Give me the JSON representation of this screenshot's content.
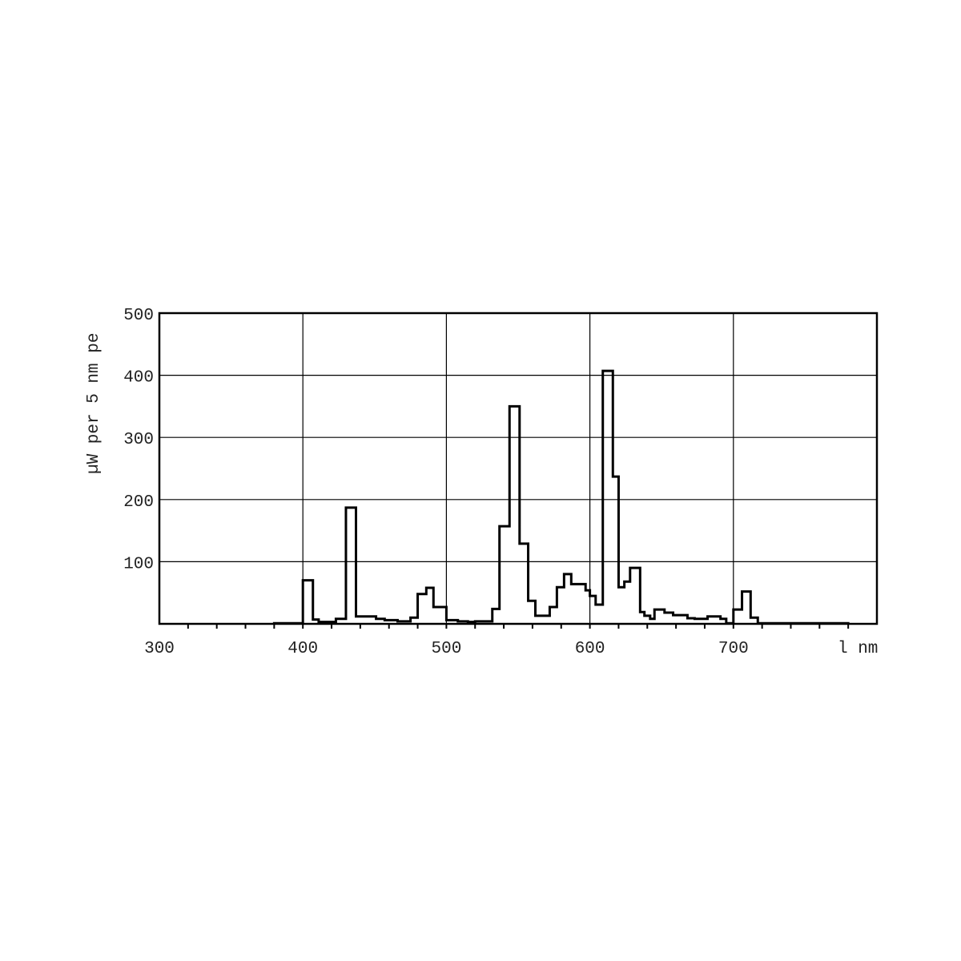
{
  "chart_data": {
    "type": "step",
    "title": "",
    "xlabel": "l nm",
    "ylabel": "µW per 5 nm pe",
    "xlim": [
      300,
      800
    ],
    "ylim": [
      0,
      500
    ],
    "x_ticks": [
      300,
      400,
      500,
      600,
      700
    ],
    "y_ticks": [
      100,
      200,
      300,
      400,
      500
    ],
    "x_minor_step": 20,
    "grid": true,
    "line_color": "#000000",
    "bin_edges": [
      380,
      400,
      407,
      411,
      423,
      430,
      437,
      451,
      457,
      466,
      475,
      480,
      486,
      491,
      500,
      508,
      515,
      520,
      532,
      537,
      544,
      551,
      557,
      562,
      572,
      577,
      582,
      587,
      597,
      600,
      604,
      609,
      616,
      620,
      624,
      628,
      635,
      638,
      642,
      645,
      652,
      658,
      668,
      673,
      682,
      691,
      695,
      700,
      706,
      712,
      717,
      780
    ],
    "values": [
      1,
      70,
      7,
      3,
      8,
      187,
      12,
      8,
      6,
      4,
      10,
      48,
      58,
      27,
      6,
      4,
      3,
      4,
      24,
      157,
      350,
      129,
      37,
      13,
      27,
      59,
      80,
      64,
      54,
      45,
      31,
      407,
      237,
      59,
      68,
      90,
      19,
      13,
      8,
      23,
      18,
      14,
      9,
      8,
      12,
      8,
      1,
      23,
      52,
      10,
      1
    ]
  }
}
